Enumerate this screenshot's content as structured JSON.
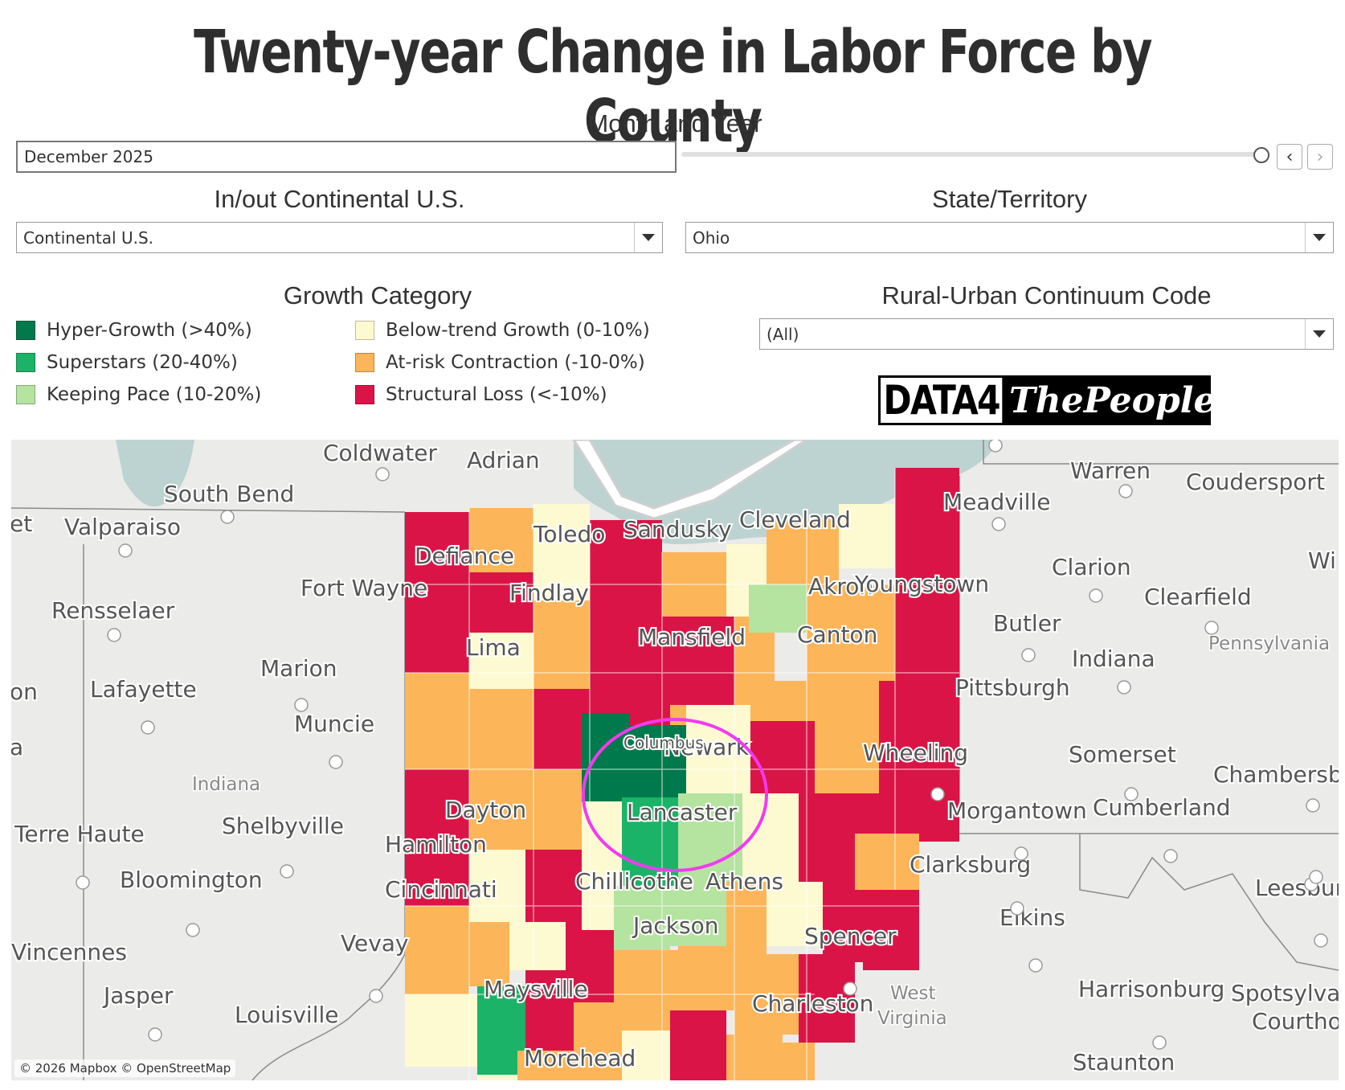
{
  "title": "Twenty-year Change in Labor Force by County",
  "filters": {
    "month_year": {
      "label": "Month and Year",
      "value": "December 2025"
    },
    "continental": {
      "label": "In/out Continental U.S.",
      "value": "Continental U.S."
    },
    "state": {
      "label": "State/Territory",
      "value": "Ohio"
    },
    "rucc": {
      "label": "Rural-Urban Continuum Code",
      "value": "(All)"
    }
  },
  "legend": {
    "title": "Growth Category",
    "items": [
      {
        "label": "Hyper-Growth (>40%)",
        "color": "#00794c"
      },
      {
        "label": "Superstars (20-40%)",
        "color": "#1bb368"
      },
      {
        "label": "Keeping Pace (10-20%)",
        "color": "#b5e3a0"
      },
      {
        "label": "Below-trend Growth (0-10%)",
        "color": "#fdfad2"
      },
      {
        "label": "At-risk Contraction (-10-0%)",
        "color": "#fdb559"
      },
      {
        "label": "Structural Loss (<-10%)",
        "color": "#db1447"
      }
    ]
  },
  "logo": {
    "part1": "DATA4",
    "part2": "ThePeople"
  },
  "map": {
    "attribution": "© 2026 Mapbox © OpenStreetMap",
    "cities": [
      "Coldwater",
      "Adrian",
      "South Bend",
      "Valparaiso",
      "Fort Wayne",
      "Rensselaer",
      "Marion",
      "Lafayette",
      "Muncie",
      "Shelbyville",
      "Terre Haute",
      "Bloomington",
      "Hamilton",
      "Cincinnati",
      "Vevay",
      "Vincennes",
      "Jasper",
      "Louisville",
      "Morehead",
      "Maysville",
      "Dayton",
      "Lima",
      "Defiance",
      "Toledo",
      "Findlay",
      "Sandusky",
      "Cleveland",
      "Akron",
      "Youngstown",
      "Canton",
      "Mansfield",
      "Newark",
      "Lancaster",
      "Chillicothe",
      "Athens",
      "Jackson",
      "Wheeling",
      "Warren",
      "Coudersport",
      "Meadville",
      "Clarion",
      "Clearfield",
      "Butler",
      "Indiana",
      "Pittsburgh",
      "Somerset",
      "Chambersburg",
      "Morgantown",
      "Cumberland",
      "Clarksburg",
      "Elkins",
      "Spencer",
      "Charleston",
      "Harrisonburg",
      "Staunton",
      "Leesburg",
      "Spotsylvania",
      "Courthouse",
      "Wi",
      "et",
      "on",
      "a",
      "Columbus"
    ],
    "regions": [
      "Indiana",
      "Pennsylvania",
      "West",
      "Virginia"
    ]
  }
}
